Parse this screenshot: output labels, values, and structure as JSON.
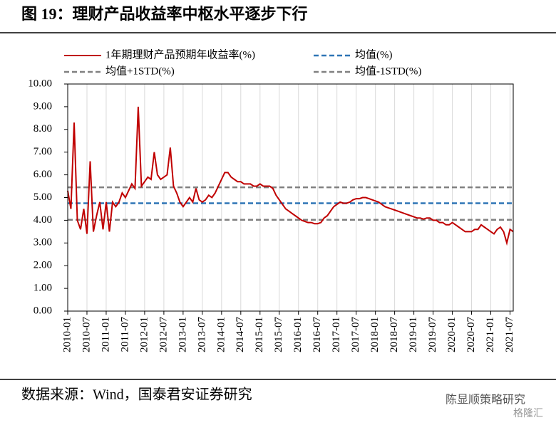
{
  "chart_data": {
    "type": "line",
    "title": "图 19：理财产品收益率中枢水平逐步下行",
    "source": "数据来源：Wind，国泰君安证券研究",
    "watermark": [
      "陈显顺策略研究",
      "格隆汇"
    ],
    "xlim": [
      "2010-01",
      "2021-08"
    ],
    "xticks": [
      "2010-01",
      "2010-07",
      "2011-01",
      "2011-07",
      "2012-01",
      "2012-07",
      "2013-01",
      "2013-07",
      "2014-01",
      "2014-07",
      "2015-01",
      "2015-07",
      "2016-01",
      "2016-07",
      "2017-01",
      "2017-07",
      "2018-01",
      "2018-07",
      "2019-01",
      "2019-07",
      "2020-01",
      "2020-07",
      "2021-01",
      "2021-07"
    ],
    "ylim": [
      0,
      10
    ],
    "yticks": [
      {
        "value": 0,
        "label": "0.00"
      },
      {
        "value": 1,
        "label": "1.00"
      },
      {
        "value": 2,
        "label": "2.00"
      },
      {
        "value": 3,
        "label": "3.00"
      },
      {
        "value": 4,
        "label": "4.00"
      },
      {
        "value": 5,
        "label": "5.00"
      },
      {
        "value": 6,
        "label": "6.00"
      },
      {
        "value": 7,
        "label": "7.00"
      },
      {
        "value": 8,
        "label": "8.00"
      },
      {
        "value": 9,
        "label": "9.00"
      },
      {
        "value": 10,
        "label": "10.00"
      }
    ],
    "grid": true,
    "x": [
      "2010-01",
      "2010-02",
      "2010-03",
      "2010-04",
      "2010-05",
      "2010-06",
      "2010-07",
      "2010-08",
      "2010-09",
      "2010-10",
      "2010-11",
      "2010-12",
      "2011-01",
      "2011-02",
      "2011-03",
      "2011-04",
      "2011-05",
      "2011-06",
      "2011-07",
      "2011-08",
      "2011-09",
      "2011-10",
      "2011-11",
      "2011-12",
      "2012-01",
      "2012-02",
      "2012-03",
      "2012-04",
      "2012-05",
      "2012-06",
      "2012-07",
      "2012-08",
      "2012-09",
      "2012-10",
      "2012-11",
      "2012-12",
      "2013-01",
      "2013-02",
      "2013-03",
      "2013-04",
      "2013-05",
      "2013-06",
      "2013-07",
      "2013-08",
      "2013-09",
      "2013-10",
      "2013-11",
      "2013-12",
      "2014-01",
      "2014-02",
      "2014-03",
      "2014-04",
      "2014-05",
      "2014-06",
      "2014-07",
      "2014-08",
      "2014-09",
      "2014-10",
      "2014-11",
      "2014-12",
      "2015-01",
      "2015-02",
      "2015-03",
      "2015-04",
      "2015-05",
      "2015-06",
      "2015-07",
      "2015-08",
      "2015-09",
      "2015-10",
      "2015-11",
      "2015-12",
      "2016-01",
      "2016-02",
      "2016-03",
      "2016-04",
      "2016-05",
      "2016-06",
      "2016-07",
      "2016-08",
      "2016-09",
      "2016-10",
      "2016-11",
      "2016-12",
      "2017-01",
      "2017-02",
      "2017-03",
      "2017-04",
      "2017-05",
      "2017-06",
      "2017-07",
      "2017-08",
      "2017-09",
      "2017-10",
      "2017-11",
      "2017-12",
      "2018-01",
      "2018-02",
      "2018-03",
      "2018-04",
      "2018-05",
      "2018-06",
      "2018-07",
      "2018-08",
      "2018-09",
      "2018-10",
      "2018-11",
      "2018-12",
      "2019-01",
      "2019-02",
      "2019-03",
      "2019-04",
      "2019-05",
      "2019-06",
      "2019-07",
      "2019-08",
      "2019-09",
      "2019-10",
      "2019-11",
      "2019-12",
      "2020-01",
      "2020-02",
      "2020-03",
      "2020-04",
      "2020-05",
      "2020-06",
      "2020-07",
      "2020-08",
      "2020-09",
      "2020-10",
      "2020-11",
      "2020-12",
      "2021-01",
      "2021-02",
      "2021-03",
      "2021-04",
      "2021-05",
      "2021-06",
      "2021-07",
      "2021-08"
    ],
    "series": [
      {
        "name": "1年期理财产品预期年收益率(%)",
        "color": "#c00000",
        "style": "solid",
        "values": [
          5.3,
          4.5,
          8.3,
          4.0,
          3.6,
          4.5,
          3.4,
          6.6,
          3.5,
          4.2,
          4.8,
          3.6,
          4.8,
          3.5,
          4.8,
          4.6,
          4.8,
          5.2,
          5.0,
          5.3,
          5.6,
          5.4,
          9.0,
          5.5,
          5.7,
          5.9,
          5.8,
          7.0,
          6.0,
          5.8,
          5.9,
          6.0,
          7.2,
          5.5,
          5.2,
          4.8,
          4.6,
          4.8,
          5.0,
          4.8,
          5.4,
          4.9,
          4.8,
          4.9,
          5.1,
          5.0,
          5.2,
          5.5,
          5.8,
          6.1,
          6.1,
          5.9,
          5.8,
          5.7,
          5.7,
          5.6,
          5.6,
          5.6,
          5.5,
          5.5,
          5.6,
          5.5,
          5.5,
          5.5,
          5.4,
          5.1,
          4.9,
          4.7,
          4.5,
          4.4,
          4.3,
          4.2,
          4.1,
          4.0,
          3.95,
          3.9,
          3.9,
          3.85,
          3.85,
          3.9,
          4.1,
          4.2,
          4.4,
          4.6,
          4.7,
          4.8,
          4.75,
          4.75,
          4.8,
          4.9,
          4.95,
          4.95,
          5.0,
          5.0,
          4.95,
          4.9,
          4.85,
          4.8,
          4.7,
          4.6,
          4.55,
          4.5,
          4.45,
          4.4,
          4.35,
          4.3,
          4.25,
          4.2,
          4.15,
          4.1,
          4.1,
          4.05,
          4.1,
          4.1,
          4.0,
          4.0,
          3.9,
          3.9,
          3.8,
          3.8,
          3.9,
          3.8,
          3.7,
          3.6,
          3.5,
          3.5,
          3.5,
          3.6,
          3.6,
          3.8,
          3.7,
          3.6,
          3.5,
          3.4,
          3.6,
          3.7,
          3.5,
          3.0,
          3.6,
          3.5
        ]
      },
      {
        "name": "均值(%)",
        "color": "#2e75b6",
        "style": "dashed",
        "value": 4.75
      },
      {
        "name": "均值+1STD(%)",
        "color": "#808080",
        "style": "dashed",
        "value": 5.45
      },
      {
        "name": "均值-1STD(%)",
        "color": "#808080",
        "style": "dashed",
        "value": 4.02
      }
    ]
  }
}
